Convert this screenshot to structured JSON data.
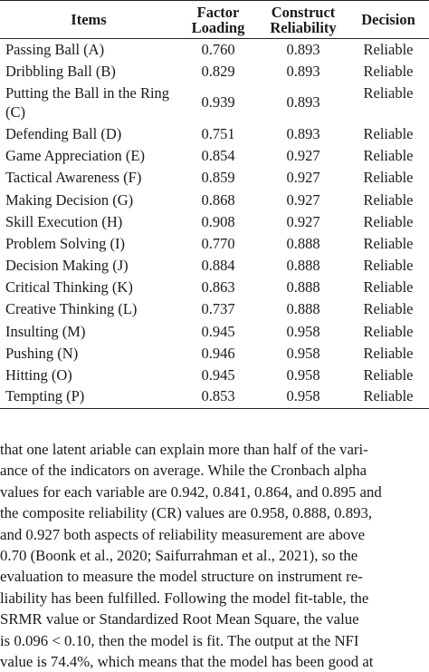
{
  "table": {
    "headers": [
      {
        "line1": "Items",
        "line2": ""
      },
      {
        "line1": "Factor",
        "line2": "Loading"
      },
      {
        "line1": "Construct",
        "line2": "Reliability"
      },
      {
        "line1": "Decision",
        "line2": ""
      }
    ],
    "rows": [
      {
        "item": "Passing Ball (A)",
        "loading": "0.760",
        "reliability": "0.893",
        "decision": "Reliable"
      },
      {
        "item": "Dribbling Ball (B)",
        "loading": "0.829",
        "reliability": "0.893",
        "decision": "Reliable"
      },
      {
        "item": "Putting the Ball in the Ring (C)",
        "loading": "0.939",
        "reliability": "0.893",
        "decision": "Reliable"
      },
      {
        "item": "Defending Ball (D)",
        "loading": "0.751",
        "reliability": "0.893",
        "decision": "Reliable"
      },
      {
        "item": "Game Appreciation (E)",
        "loading": "0.854",
        "reliability": "0.927",
        "decision": "Reliable"
      },
      {
        "item": "Tactical Awareness (F)",
        "loading": "0.859",
        "reliability": "0.927",
        "decision": "Reliable"
      },
      {
        "item": "Making Decision (G)",
        "loading": "0.868",
        "reliability": "0.927",
        "decision": "Reliable"
      },
      {
        "item": "Skill Execution (H)",
        "loading": "0.908",
        "reliability": "0.927",
        "decision": "Reliable"
      },
      {
        "item": "Problem Solving (I)",
        "loading": "0.770",
        "reliability": "0.888",
        "decision": "Reliable"
      },
      {
        "item": "Decision Making (J)",
        "loading": "0.884",
        "reliability": "0.888",
        "decision": "Reliable"
      },
      {
        "item": "Critical Thinking (K)",
        "loading": "0.863",
        "reliability": "0.888",
        "decision": "Reliable"
      },
      {
        "item": "Creative Thinking (L)",
        "loading": "0.737",
        "reliability": "0.888",
        "decision": "Reliable"
      },
      {
        "item": "Insulting (M)",
        "loading": "0.945",
        "reliability": "0.958",
        "decision": "Reliable"
      },
      {
        "item": "Pushing (N)",
        "loading": "0.946",
        "reliability": "0.958",
        "decision": "Reliable"
      },
      {
        "item": "Hitting (O)",
        "loading": "0.945",
        "reliability": "0.958",
        "decision": "Reliable"
      },
      {
        "item": "Tempting (P)",
        "loading": "0.853",
        "reliability": "0.958",
        "decision": "Reliable"
      }
    ]
  },
  "paragraph": {
    "lines": [
      "that one latent ariable can explain more than half of the vari-",
      "ance of the indicators on average. While the Cronbach alpha",
      "values for each variable are 0.942, 0.841, 0.864, and 0.895 and",
      "the composite reliability (CR) values are 0.958, 0.888, 0.893,",
      "and 0.927 both aspects of reliability measurement are above",
      "0.70 (Boonk et al., 2020; Saifurrahman et al., 2021), so the",
      "evaluation to measure the model structure on instrument re-",
      "liability has been fulfilled. Following the model fit-table, the",
      "SRMR value or Standardized Root Mean Square, the value",
      "is 0.096 < 0.10, then the model is fit. The output at the NFI",
      "value is 74.4%, which means that the model has been good at"
    ]
  }
}
